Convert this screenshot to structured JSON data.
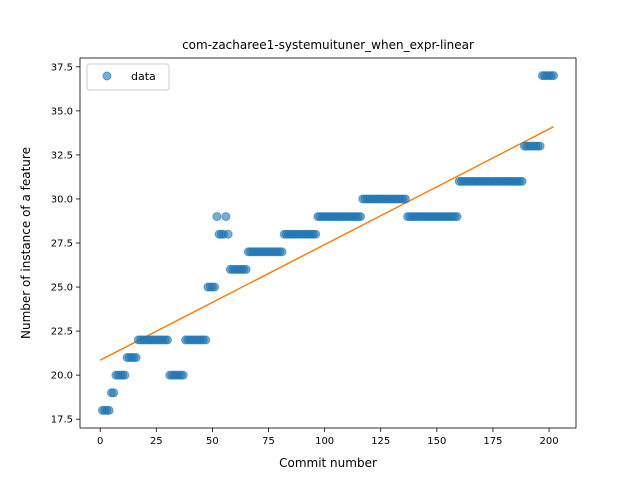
{
  "chart_data": {
    "type": "scatter",
    "title": "com-zacharee1-systemuituner_when_expr-linear",
    "xlabel": "Commit number",
    "ylabel": "Number of instance of a feature",
    "xlim": [
      -9,
      212
    ],
    "ylim": [
      17,
      38
    ],
    "xticks": [
      0,
      25,
      50,
      75,
      100,
      125,
      150,
      175,
      200
    ],
    "yticks": [
      17.5,
      20.0,
      22.5,
      25.0,
      27.5,
      30.0,
      32.5,
      35.0,
      37.5
    ],
    "grid": false,
    "legend": {
      "position": "top-left",
      "entries": [
        "data"
      ]
    },
    "colors": {
      "data": "#1f77b4",
      "fit": "#ff7f0e"
    },
    "series": [
      {
        "name": "data",
        "kind": "scatter",
        "points": [
          [
            1,
            18
          ],
          [
            2,
            18
          ],
          [
            3,
            18
          ],
          [
            4,
            18
          ],
          [
            5,
            19
          ],
          [
            6,
            19
          ],
          [
            7,
            20
          ],
          [
            8,
            20
          ],
          [
            9,
            20
          ],
          [
            10,
            20
          ],
          [
            11,
            20
          ],
          [
            12,
            21
          ],
          [
            13,
            21
          ],
          [
            14,
            21
          ],
          [
            15,
            21
          ],
          [
            16,
            21
          ],
          [
            17,
            22
          ],
          [
            18,
            22
          ],
          [
            19,
            22
          ],
          [
            20,
            22
          ],
          [
            21,
            22
          ],
          [
            22,
            22
          ],
          [
            23,
            22
          ],
          [
            24,
            22
          ],
          [
            25,
            22
          ],
          [
            26,
            22
          ],
          [
            27,
            22
          ],
          [
            28,
            22
          ],
          [
            29,
            22
          ],
          [
            30,
            22
          ],
          [
            31,
            20
          ],
          [
            32,
            20
          ],
          [
            33,
            20
          ],
          [
            34,
            20
          ],
          [
            35,
            20
          ],
          [
            36,
            20
          ],
          [
            37,
            20
          ],
          [
            38,
            22
          ],
          [
            39,
            22
          ],
          [
            40,
            22
          ],
          [
            41,
            22
          ],
          [
            42,
            22
          ],
          [
            43,
            22
          ],
          [
            44,
            22
          ],
          [
            45,
            22
          ],
          [
            46,
            22
          ],
          [
            47,
            22
          ],
          [
            48,
            25
          ],
          [
            49,
            25
          ],
          [
            50,
            25
          ],
          [
            51,
            25
          ],
          [
            52,
            29
          ],
          [
            53,
            28
          ],
          [
            54,
            28
          ],
          [
            55,
            28
          ],
          [
            56,
            29
          ],
          [
            57,
            28
          ],
          [
            58,
            26
          ],
          [
            59,
            26
          ],
          [
            60,
            26
          ],
          [
            61,
            26
          ],
          [
            62,
            26
          ],
          [
            63,
            26
          ],
          [
            64,
            26
          ],
          [
            65,
            26
          ],
          [
            66,
            27
          ],
          [
            67,
            27
          ],
          [
            68,
            27
          ],
          [
            69,
            27
          ],
          [
            70,
            27
          ],
          [
            71,
            27
          ],
          [
            72,
            27
          ],
          [
            73,
            27
          ],
          [
            74,
            27
          ],
          [
            75,
            27
          ],
          [
            76,
            27
          ],
          [
            77,
            27
          ],
          [
            78,
            27
          ],
          [
            79,
            27
          ],
          [
            80,
            27
          ],
          [
            81,
            27
          ],
          [
            82,
            28
          ],
          [
            83,
            28
          ],
          [
            84,
            28
          ],
          [
            85,
            28
          ],
          [
            86,
            28
          ],
          [
            87,
            28
          ],
          [
            88,
            28
          ],
          [
            89,
            28
          ],
          [
            90,
            28
          ],
          [
            91,
            28
          ],
          [
            92,
            28
          ],
          [
            93,
            28
          ],
          [
            94,
            28
          ],
          [
            95,
            28
          ],
          [
            96,
            28
          ],
          [
            97,
            29
          ],
          [
            98,
            29
          ],
          [
            99,
            29
          ],
          [
            100,
            29
          ],
          [
            101,
            29
          ],
          [
            102,
            29
          ],
          [
            103,
            29
          ],
          [
            104,
            29
          ],
          [
            105,
            29
          ],
          [
            106,
            29
          ],
          [
            107,
            29
          ],
          [
            108,
            29
          ],
          [
            109,
            29
          ],
          [
            110,
            29
          ],
          [
            111,
            29
          ],
          [
            112,
            29
          ],
          [
            113,
            29
          ],
          [
            114,
            29
          ],
          [
            115,
            29
          ],
          [
            116,
            29
          ],
          [
            117,
            30
          ],
          [
            118,
            30
          ],
          [
            119,
            30
          ],
          [
            120,
            30
          ],
          [
            121,
            30
          ],
          [
            122,
            30
          ],
          [
            123,
            30
          ],
          [
            124,
            30
          ],
          [
            125,
            30
          ],
          [
            126,
            30
          ],
          [
            127,
            30
          ],
          [
            128,
            30
          ],
          [
            129,
            30
          ],
          [
            130,
            30
          ],
          [
            131,
            30
          ],
          [
            132,
            30
          ],
          [
            133,
            30
          ],
          [
            134,
            30
          ],
          [
            135,
            30
          ],
          [
            136,
            30
          ],
          [
            137,
            29
          ],
          [
            138,
            29
          ],
          [
            139,
            29
          ],
          [
            140,
            29
          ],
          [
            141,
            29
          ],
          [
            142,
            29
          ],
          [
            143,
            29
          ],
          [
            144,
            29
          ],
          [
            145,
            29
          ],
          [
            146,
            29
          ],
          [
            147,
            29
          ],
          [
            148,
            29
          ],
          [
            149,
            29
          ],
          [
            150,
            29
          ],
          [
            151,
            29
          ],
          [
            152,
            29
          ],
          [
            153,
            29
          ],
          [
            154,
            29
          ],
          [
            155,
            29
          ],
          [
            156,
            29
          ],
          [
            157,
            29
          ],
          [
            158,
            29
          ],
          [
            159,
            29
          ],
          [
            160,
            31
          ],
          [
            161,
            31
          ],
          [
            162,
            31
          ],
          [
            163,
            31
          ],
          [
            164,
            31
          ],
          [
            165,
            31
          ],
          [
            166,
            31
          ],
          [
            167,
            31
          ],
          [
            168,
            31
          ],
          [
            169,
            31
          ],
          [
            170,
            31
          ],
          [
            171,
            31
          ],
          [
            172,
            31
          ],
          [
            173,
            31
          ],
          [
            174,
            31
          ],
          [
            175,
            31
          ],
          [
            176,
            31
          ],
          [
            177,
            31
          ],
          [
            178,
            31
          ],
          [
            179,
            31
          ],
          [
            180,
            31
          ],
          [
            181,
            31
          ],
          [
            182,
            31
          ],
          [
            183,
            31
          ],
          [
            184,
            31
          ],
          [
            185,
            31
          ],
          [
            186,
            31
          ],
          [
            187,
            31
          ],
          [
            188,
            31
          ],
          [
            189,
            33
          ],
          [
            190,
            33
          ],
          [
            191,
            33
          ],
          [
            192,
            33
          ],
          [
            193,
            33
          ],
          [
            194,
            33
          ],
          [
            195,
            33
          ],
          [
            196,
            33
          ],
          [
            197,
            37
          ],
          [
            198,
            37
          ],
          [
            199,
            37
          ],
          [
            200,
            37
          ],
          [
            201,
            37
          ],
          [
            202,
            37
          ]
        ]
      },
      {
        "kind": "line",
        "points": [
          [
            0,
            20.85
          ],
          [
            202,
            34.1
          ]
        ]
      }
    ]
  }
}
